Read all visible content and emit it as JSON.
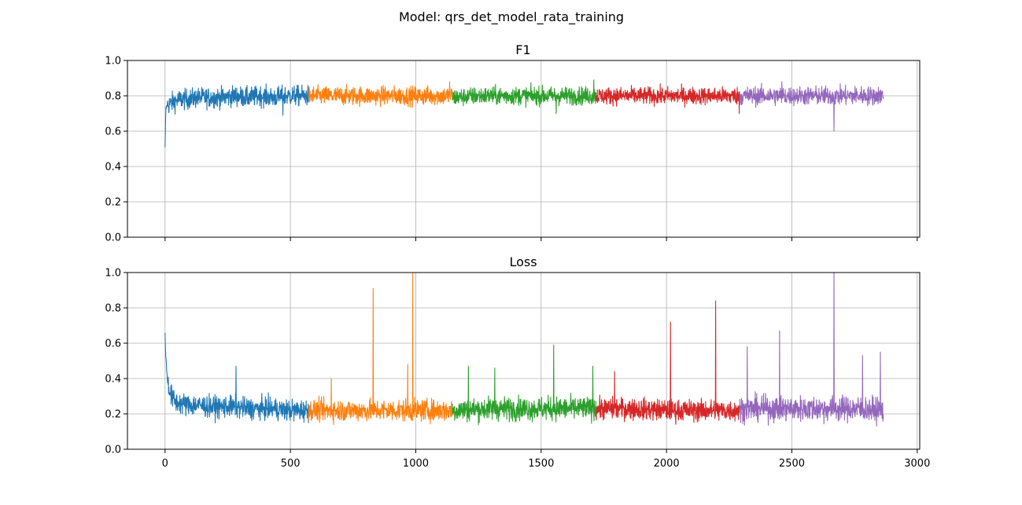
{
  "figure": {
    "suptitle": "Model: qrs_det_model_rata_training"
  },
  "chart_data": [
    {
      "type": "line",
      "title": "F1",
      "xlim": [
        -150,
        3010
      ],
      "ylim": [
        0,
        1
      ],
      "xticks": [
        0,
        500,
        1000,
        1500,
        2000,
        2500,
        3000
      ],
      "yticks": [
        "0.0",
        "0.2",
        "0.4",
        "0.6",
        "0.8",
        "1.0"
      ],
      "show_xticklabels": false,
      "grid": true,
      "series": [
        {
          "x": [
            0,
            3,
            8,
            15,
            25,
            40,
            60,
            90,
            130,
            180,
            230,
            280,
            330,
            380,
            430,
            480,
            530,
            573
          ],
          "values": [
            0.5,
            0.72,
            0.75,
            0.75,
            0.76,
            0.77,
            0.78,
            0.78,
            0.79,
            0.79,
            0.79,
            0.8,
            0.79,
            0.8,
            0.79,
            0.8,
            0.8,
            0.8
          ],
          "noise": 0.028,
          "color": "#1f77b4"
        },
        {
          "x": [
            573,
            650,
            750,
            850,
            950,
            1050,
            1146
          ],
          "values": [
            0.8,
            0.8,
            0.8,
            0.8,
            0.8,
            0.8,
            0.8
          ],
          "noise": 0.026,
          "color": "#ff7f0e"
        },
        {
          "x": [
            1146,
            1250,
            1350,
            1450,
            1550,
            1650,
            1719
          ],
          "values": [
            0.79,
            0.8,
            0.8,
            0.8,
            0.8,
            0.8,
            0.8
          ],
          "noise": 0.025,
          "color": "#2ca02c"
        },
        {
          "x": [
            1719,
            1800,
            1900,
            2000,
            2100,
            2200,
            2292
          ],
          "values": [
            0.8,
            0.8,
            0.8,
            0.8,
            0.8,
            0.8,
            0.8
          ],
          "noise": 0.024,
          "color": "#d62728"
        },
        {
          "x": [
            2292,
            2400,
            2500,
            2600,
            2700,
            2800,
            2865
          ],
          "values": [
            0.8,
            0.8,
            0.8,
            0.8,
            0.8,
            0.8,
            0.8
          ],
          "noise": 0.026,
          "color": "#9467bd"
        }
      ],
      "spikes": [
        {
          "x": 2668,
          "value": 0.6,
          "series": 4
        },
        {
          "x": 2290,
          "value": 0.7,
          "series": 3
        },
        {
          "x": 1560,
          "value": 0.7,
          "series": 2
        },
        {
          "x": 1135,
          "value": 0.88,
          "series": 1
        },
        {
          "x": 1710,
          "value": 0.89,
          "series": 2
        },
        {
          "x": 2460,
          "value": 0.88,
          "series": 4
        },
        {
          "x": 470,
          "value": 0.69,
          "series": 0
        }
      ]
    },
    {
      "type": "line",
      "title": "Loss",
      "xlim": [
        -150,
        3010
      ],
      "ylim": [
        0,
        1
      ],
      "xticks": [
        0,
        500,
        1000,
        1500,
        2000,
        2500,
        3000
      ],
      "xticklabels": [
        "0",
        "500",
        "1000",
        "1500",
        "2000",
        "2500",
        "3000"
      ],
      "yticks": [
        "0.0",
        "0.2",
        "0.4",
        "0.6",
        "0.8",
        "1.0"
      ],
      "show_xticklabels": true,
      "grid": true,
      "series": [
        {
          "x": [
            0,
            3,
            8,
            15,
            25,
            40,
            60,
            90,
            130,
            180,
            230,
            280,
            330,
            380,
            430,
            480,
            530,
            573
          ],
          "values": [
            0.66,
            0.52,
            0.42,
            0.35,
            0.3,
            0.27,
            0.26,
            0.25,
            0.25,
            0.24,
            0.24,
            0.24,
            0.23,
            0.23,
            0.23,
            0.22,
            0.22,
            0.22
          ],
          "noise": 0.03,
          "color": "#1f77b4"
        },
        {
          "x": [
            573,
            700,
            850,
            1000,
            1146
          ],
          "values": [
            0.22,
            0.22,
            0.22,
            0.22,
            0.22
          ],
          "noise": 0.03,
          "color": "#ff7f0e"
        },
        {
          "x": [
            1146,
            1300,
            1450,
            1600,
            1719
          ],
          "values": [
            0.22,
            0.23,
            0.23,
            0.23,
            0.23
          ],
          "noise": 0.032,
          "color": "#2ca02c"
        },
        {
          "x": [
            1719,
            1850,
            2000,
            2150,
            2292
          ],
          "values": [
            0.23,
            0.23,
            0.22,
            0.22,
            0.22
          ],
          "noise": 0.03,
          "color": "#d62728"
        },
        {
          "x": [
            2292,
            2450,
            2600,
            2750,
            2865
          ],
          "values": [
            0.23,
            0.23,
            0.23,
            0.23,
            0.22
          ],
          "noise": 0.035,
          "color": "#9467bd"
        }
      ],
      "spikes": [
        {
          "x": 283,
          "value": 0.47,
          "series": 0
        },
        {
          "x": 663,
          "value": 0.4,
          "series": 1
        },
        {
          "x": 830,
          "value": 0.91,
          "series": 1
        },
        {
          "x": 968,
          "value": 0.48,
          "series": 1
        },
        {
          "x": 988,
          "value": 1.0,
          "series": 1
        },
        {
          "x": 1210,
          "value": 0.47,
          "series": 2
        },
        {
          "x": 1315,
          "value": 0.46,
          "series": 2
        },
        {
          "x": 1550,
          "value": 0.59,
          "series": 2
        },
        {
          "x": 1706,
          "value": 0.47,
          "series": 2
        },
        {
          "x": 1793,
          "value": 0.44,
          "series": 3
        },
        {
          "x": 2016,
          "value": 0.72,
          "series": 3
        },
        {
          "x": 2196,
          "value": 0.84,
          "series": 3
        },
        {
          "x": 2322,
          "value": 0.58,
          "series": 4
        },
        {
          "x": 2451,
          "value": 0.67,
          "series": 4
        },
        {
          "x": 2668,
          "value": 1.0,
          "series": 4
        },
        {
          "x": 2782,
          "value": 0.53,
          "series": 4
        },
        {
          "x": 2853,
          "value": 0.55,
          "series": 4
        }
      ]
    }
  ]
}
